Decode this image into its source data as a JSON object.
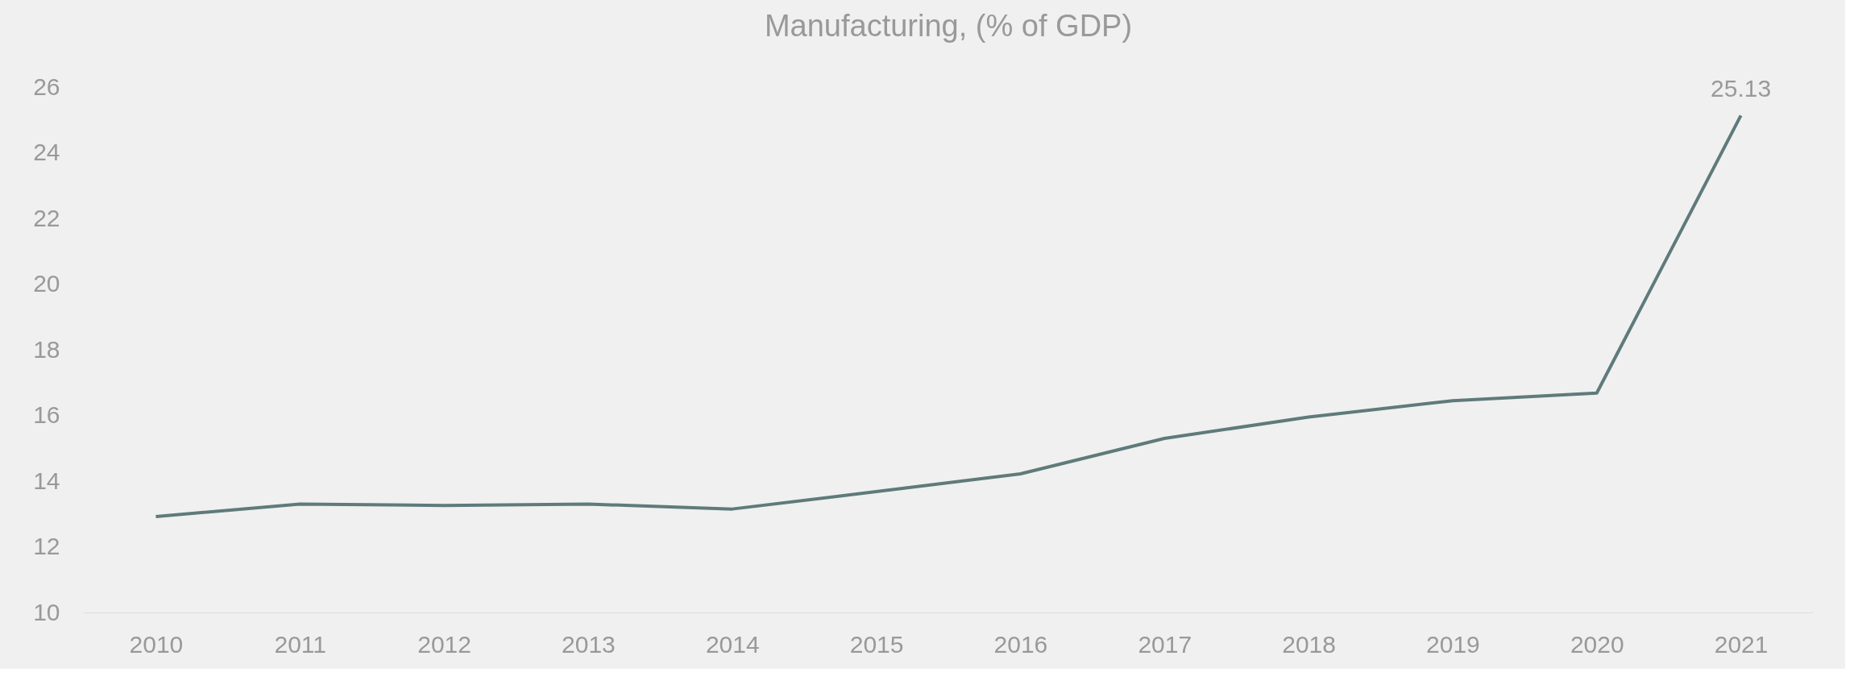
{
  "chart_data": {
    "type": "line",
    "title": "Manufacturing, (% of GDP)",
    "categories": [
      "2010",
      "2011",
      "2012",
      "2013",
      "2014",
      "2015",
      "2016",
      "2017",
      "2018",
      "2019",
      "2020",
      "2021"
    ],
    "series": [
      {
        "color": "#5f7a7a",
        "values": [
          12.92,
          13.3,
          13.26,
          13.3,
          13.15,
          13.68,
          14.22,
          15.3,
          15.95,
          16.45,
          16.68,
          25.13
        ],
        "value_labels": [
          null,
          null,
          null,
          null,
          null,
          null,
          null,
          null,
          null,
          null,
          null,
          "25.13"
        ]
      }
    ],
    "ylim": [
      10,
      26
    ],
    "yticks": [
      10,
      12,
      14,
      16,
      18,
      20,
      22,
      24,
      26
    ],
    "grid": false,
    "legend": false,
    "marker": "none",
    "line_style": "solid"
  }
}
